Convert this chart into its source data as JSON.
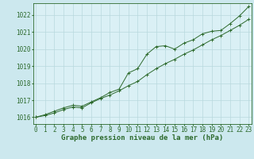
{
  "xlabel": "Graphe pression niveau de la mer (hPa)",
  "x_ticks": [
    0,
    1,
    2,
    3,
    4,
    5,
    6,
    7,
    8,
    9,
    10,
    11,
    12,
    13,
    14,
    15,
    16,
    17,
    18,
    19,
    20,
    21,
    22,
    23
  ],
  "y_ticks": [
    1016,
    1017,
    1018,
    1019,
    1020,
    1021,
    1022
  ],
  "ylim": [
    1015.6,
    1022.7
  ],
  "xlim": [
    -0.3,
    23.3
  ],
  "bg_color": "#cce8ee",
  "plot_bg_color": "#daf0f5",
  "grid_color": "#b8d8de",
  "line_color": "#2d6a2d",
  "tick_fontsize": 5.5,
  "label_fontsize": 6.5,
  "label_color": "#2d6a2d",
  "line1_x": [
    0,
    1,
    2,
    3,
    4,
    5,
    6,
    7,
    8,
    9,
    10,
    11,
    12,
    13,
    14,
    15,
    16,
    17,
    18,
    19,
    20,
    21,
    22,
    23
  ],
  "line1_y": [
    1016.0,
    1016.15,
    1016.35,
    1016.55,
    1016.7,
    1016.65,
    1016.9,
    1017.15,
    1017.45,
    1017.65,
    1018.6,
    1018.85,
    1019.7,
    1020.15,
    1020.2,
    1020.0,
    1020.35,
    1020.55,
    1020.9,
    1021.05,
    1021.1,
    1021.5,
    1021.95,
    1022.5
  ],
  "line2_x": [
    0,
    1,
    2,
    3,
    4,
    5,
    6,
    7,
    8,
    9,
    10,
    11,
    12,
    13,
    14,
    15,
    16,
    17,
    18,
    19,
    20,
    21,
    22,
    23
  ],
  "line2_y": [
    1016.0,
    1016.1,
    1016.25,
    1016.45,
    1016.6,
    1016.55,
    1016.85,
    1017.1,
    1017.3,
    1017.55,
    1017.85,
    1018.1,
    1018.5,
    1018.85,
    1019.15,
    1019.4,
    1019.7,
    1019.95,
    1020.25,
    1020.55,
    1020.8,
    1021.1,
    1021.4,
    1021.75
  ]
}
